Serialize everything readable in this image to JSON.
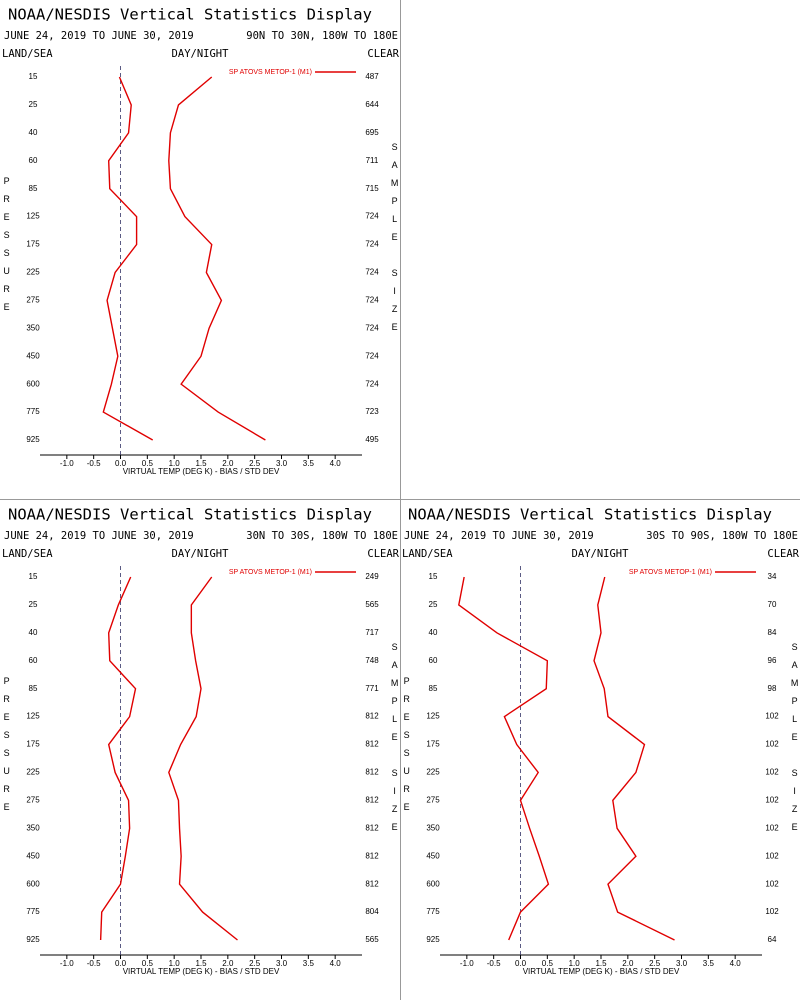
{
  "chart_data": [
    {
      "type": "line",
      "title": "NOAA/NESDIS Vertical Statistics Display",
      "subtitle": "JUNE 24, 2019 TO JUNE 30, 2019",
      "region": "90N TO 30N, 180W TO 180E",
      "land_sea": "LAND/SEA",
      "day_night": "DAY/NIGHT",
      "clear": "CLEAR",
      "y_label": "PRESSURE",
      "y2_label": "SAMPLE SIZE",
      "x_label": "VIRTUAL TEMP (DEG K) - BIAS / STD DEV",
      "categories": [
        15,
        25,
        40,
        60,
        85,
        125,
        175,
        225,
        275,
        350,
        450,
        600,
        775,
        925
      ],
      "sample_size": [
        487,
        644,
        695,
        711,
        715,
        724,
        724,
        724,
        724,
        724,
        724,
        724,
        723,
        495
      ],
      "series": [
        {
          "name": "SP ATOVS METOP-1 (M1)",
          "color": "#e00000",
          "values": [
            -0.02,
            0.2,
            0.15,
            -0.22,
            -0.2,
            0.3,
            0.3,
            -0.1,
            -0.25,
            -0.15,
            -0.05,
            -0.17,
            -0.32,
            0.6
          ],
          "std_values": [
            1.7,
            1.08,
            0.93,
            0.9,
            0.93,
            1.2,
            1.7,
            1.6,
            1.88,
            1.65,
            1.5,
            1.13,
            1.82,
            2.7
          ]
        }
      ],
      "xlim": [
        -1.5,
        4.5
      ],
      "xticks": [
        {
          "value": -1,
          "label": "-1.0"
        },
        {
          "value": -0.5,
          "label": "-0.5"
        },
        {
          "value": 0,
          "label": "0.0"
        },
        {
          "value": 0.5,
          "label": "0.5"
        },
        {
          "value": 1,
          "label": "1.0"
        },
        {
          "value": 1.5,
          "label": "1.5"
        },
        {
          "value": 2,
          "label": "2.0"
        },
        {
          "value": 2.5,
          "label": "2.5"
        },
        {
          "value": 3,
          "label": "3.0"
        },
        {
          "value": 3.5,
          "label": "3.5"
        },
        {
          "value": 4,
          "label": "4.0"
        }
      ]
    },
    {
      "type": "line",
      "title": "NOAA/NESDIS Vertical Statistics Display",
      "subtitle": "JUNE 24, 2019 TO JUNE 30, 2019",
      "region": "30N TO 30S, 180W TO 180E",
      "land_sea": "LAND/SEA",
      "day_night": "DAY/NIGHT",
      "clear": "CLEAR",
      "y_label": "PRESSURE",
      "y2_label": "SAMPLE SIZE",
      "x_label": "VIRTUAL TEMP (DEG K) - BIAS / STD DEV",
      "categories": [
        15,
        25,
        40,
        60,
        85,
        125,
        175,
        225,
        275,
        350,
        450,
        600,
        775,
        925
      ],
      "sample_size": [
        249,
        565,
        717,
        748,
        771,
        812,
        812,
        812,
        812,
        812,
        812,
        812,
        804,
        565
      ],
      "series": [
        {
          "name": "SP ATOVS METOP-1 (M1)",
          "color": "#e00000",
          "values": [
            0.19,
            -0.04,
            -0.22,
            -0.2,
            0.28,
            0.17,
            -0.22,
            -0.1,
            0.15,
            0.17,
            0.09,
            0,
            -0.35,
            -0.37
          ],
          "std_values": [
            1.7,
            1.32,
            1.32,
            1.4,
            1.5,
            1.41,
            1.12,
            0.9,
            1.08,
            1.1,
            1.13,
            1.1,
            1.53,
            2.18
          ]
        }
      ],
      "xlim": [
        -1.5,
        4.5
      ],
      "xticks": [
        {
          "value": -1,
          "label": "-1.0"
        },
        {
          "value": -0.5,
          "label": "-0.5"
        },
        {
          "value": 0,
          "label": "0.0"
        },
        {
          "value": 0.5,
          "label": "0.5"
        },
        {
          "value": 1,
          "label": "1.0"
        },
        {
          "value": 1.5,
          "label": "1.5"
        },
        {
          "value": 2,
          "label": "2.0"
        },
        {
          "value": 2.5,
          "label": "2.5"
        },
        {
          "value": 3,
          "label": "3.0"
        },
        {
          "value": 3.5,
          "label": "3.5"
        },
        {
          "value": 4,
          "label": "4.0"
        }
      ]
    },
    {
      "type": "line",
      "title": "NOAA/NESDIS Vertical Statistics Display",
      "subtitle": "JUNE 24, 2019 TO JUNE 30, 2019",
      "region": "30S TO 90S, 180W TO 180E",
      "land_sea": "LAND/SEA",
      "day_night": "DAY/NIGHT",
      "clear": "CLEAR",
      "y_label": "PRESSURE",
      "y2_label": "SAMPLE SIZE",
      "x_label": "VIRTUAL TEMP (DEG K) - BIAS / STD DEV",
      "categories": [
        15,
        25,
        40,
        60,
        85,
        125,
        175,
        225,
        275,
        350,
        450,
        600,
        775,
        925
      ],
      "sample_size": [
        34,
        70,
        84,
        96,
        98,
        102,
        102,
        102,
        102,
        102,
        102,
        102,
        102,
        64
      ],
      "series": [
        {
          "name": "SP ATOVS METOP-1 (M1)",
          "color": "#e00000",
          "values": [
            -1.05,
            -1.15,
            -0.44,
            0.5,
            0.48,
            -0.3,
            -0.07,
            0.33,
            0,
            0.17,
            0.35,
            0.52,
            0,
            -0.22
          ],
          "std_values": [
            1.57,
            1.44,
            1.5,
            1.37,
            1.56,
            1.63,
            2.31,
            2.15,
            1.72,
            1.8,
            2.15,
            1.63,
            1.81,
            2.87
          ]
        }
      ],
      "xlim": [
        -1.5,
        4.5
      ],
      "xticks": [
        {
          "value": -1,
          "label": "-1.0"
        },
        {
          "value": -0.5,
          "label": "-0.5"
        },
        {
          "value": 0,
          "label": "0.0"
        },
        {
          "value": 0.5,
          "label": "0.5"
        },
        {
          "value": 1,
          "label": "1.0"
        },
        {
          "value": 1.5,
          "label": "1.5"
        },
        {
          "value": 2,
          "label": "2.0"
        },
        {
          "value": 2.5,
          "label": "2.5"
        },
        {
          "value": 3,
          "label": "3.0"
        },
        {
          "value": 3.5,
          "label": "3.5"
        },
        {
          "value": 4,
          "label": "4.0"
        }
      ]
    }
  ]
}
